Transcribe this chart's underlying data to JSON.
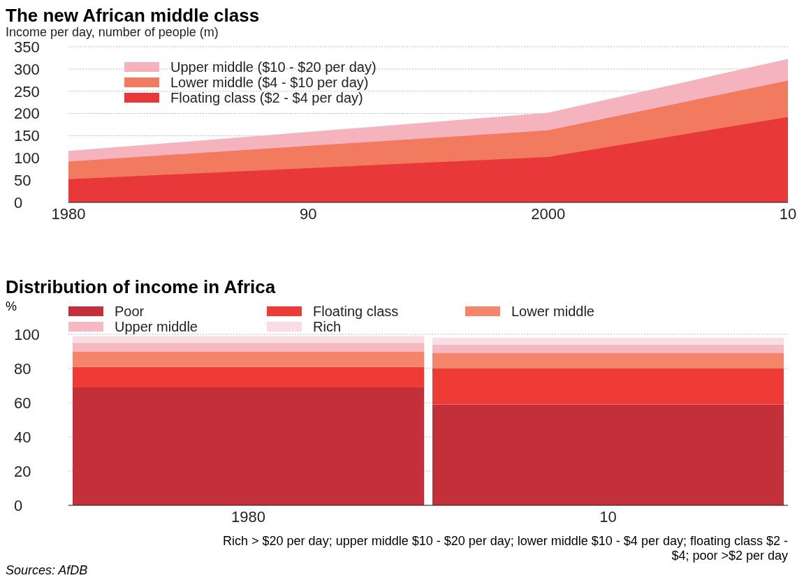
{
  "chart_data": [
    {
      "type": "area",
      "stacked": true,
      "title": "The new African middle class",
      "subtitle": "Income per day, number of people (m)",
      "x": [
        1980,
        2000,
        2010
      ],
      "xlim": [
        1980,
        2010
      ],
      "xticks": [
        {
          "value": 1980,
          "label": "1980"
        },
        {
          "value": 1990,
          "label": "90"
        },
        {
          "value": 2000,
          "label": "2000"
        },
        {
          "value": 2010,
          "label": "10"
        }
      ],
      "ylim": [
        0,
        350
      ],
      "yticks": [
        0,
        50,
        100,
        150,
        200,
        250,
        300,
        350
      ],
      "grid": "y",
      "legend": "top left",
      "series": [
        {
          "name": "Floating class ($2 - $4 per day)",
          "color": "#e8383a",
          "values": [
            52,
            102,
            192
          ]
        },
        {
          "name": "Lower middle ($4 - $10 per day)",
          "color": "#f27a5e",
          "values": [
            40,
            60,
            82
          ]
        },
        {
          "name": "Upper middle ($10 - $20 per day)",
          "color": "#f5b3bd",
          "values": [
            22,
            38,
            47
          ]
        }
      ]
    },
    {
      "type": "bar",
      "stacked": true,
      "title": "Distribution of income in Africa",
      "ylabel": "%",
      "categories": [
        "1980",
        "10"
      ],
      "ylim": [
        0,
        100
      ],
      "yticks": [
        0,
        20,
        40,
        60,
        80,
        100
      ],
      "grid": "y",
      "legend": "top",
      "series": [
        {
          "name": "Poor",
          "color": "#c4303a",
          "values": [
            69,
            59
          ]
        },
        {
          "name": "Floating class",
          "color": "#ee3b36",
          "values": [
            12,
            21
          ]
        },
        {
          "name": "Lower middle",
          "color": "#f4846a",
          "values": [
            9,
            9
          ]
        },
        {
          "name": "Upper middle",
          "color": "#f6b8c2",
          "values": [
            5,
            5
          ]
        },
        {
          "name": "Rich",
          "color": "#f9dde3",
          "values": [
            4,
            4
          ]
        }
      ],
      "annotations": [
        "Rich > $20 per day; upper middle $10 - $20 per day; lower middle $10 - $4 per day; floating class $2 - $4; poor >$2 per day",
        "Sources: AfDB"
      ]
    }
  ]
}
